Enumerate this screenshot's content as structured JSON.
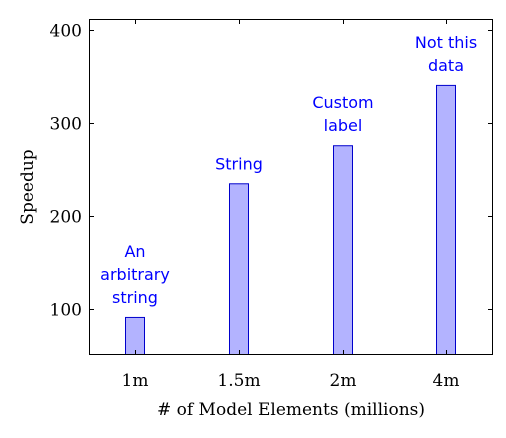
{
  "chart_data": {
    "type": "bar",
    "categories": [
      "1m",
      "1.5m",
      "2m",
      "4m"
    ],
    "values": [
      91,
      235,
      276,
      341
    ],
    "bar_labels": [
      [
        "An",
        "arbitrary",
        "string"
      ],
      [
        "String"
      ],
      [
        "Custom",
        "label"
      ],
      [
        "Not this",
        "data"
      ]
    ],
    "xlabel": "# of Model Elements (millions)",
    "ylabel": "Speedup",
    "ylim": [
      50,
      412
    ],
    "yticks": [
      100,
      200,
      300,
      400
    ],
    "grid": false,
    "legend": "none",
    "colors": {
      "bar_fill": "#b3b3ff",
      "bar_stroke": "#0000cc",
      "label": "#0000ff",
      "axis": "#000000"
    }
  }
}
